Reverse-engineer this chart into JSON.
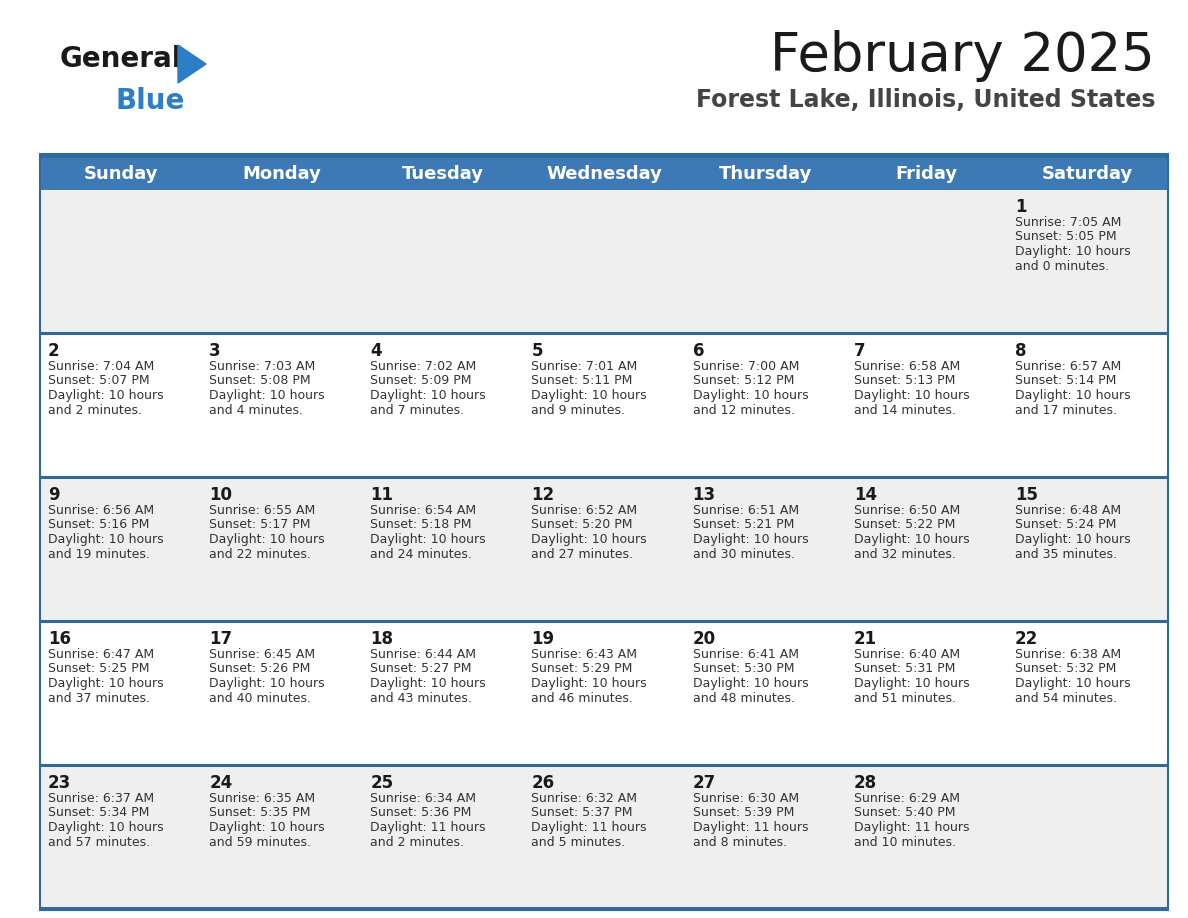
{
  "title": "February 2025",
  "subtitle": "Forest Lake, Illinois, United States",
  "header_bg": "#3d7ab5",
  "header_text": "#ffffff",
  "cell_bg_odd": "#efefef",
  "cell_bg_even": "#ffffff",
  "separator_color": "#2d6aa0",
  "text_color": "#333333",
  "day_number_color": "#1a1a1a",
  "day_headers": [
    "Sunday",
    "Monday",
    "Tuesday",
    "Wednesday",
    "Thursday",
    "Friday",
    "Saturday"
  ],
  "calendar_data": [
    [
      null,
      null,
      null,
      null,
      null,
      null,
      {
        "day": 1,
        "sunrise": "7:05 AM",
        "sunset": "5:05 PM",
        "daylight_hours": 10,
        "daylight_minutes": 0
      }
    ],
    [
      {
        "day": 2,
        "sunrise": "7:04 AM",
        "sunset": "5:07 PM",
        "daylight_hours": 10,
        "daylight_minutes": 2
      },
      {
        "day": 3,
        "sunrise": "7:03 AM",
        "sunset": "5:08 PM",
        "daylight_hours": 10,
        "daylight_minutes": 4
      },
      {
        "day": 4,
        "sunrise": "7:02 AM",
        "sunset": "5:09 PM",
        "daylight_hours": 10,
        "daylight_minutes": 7
      },
      {
        "day": 5,
        "sunrise": "7:01 AM",
        "sunset": "5:11 PM",
        "daylight_hours": 10,
        "daylight_minutes": 9
      },
      {
        "day": 6,
        "sunrise": "7:00 AM",
        "sunset": "5:12 PM",
        "daylight_hours": 10,
        "daylight_minutes": 12
      },
      {
        "day": 7,
        "sunrise": "6:58 AM",
        "sunset": "5:13 PM",
        "daylight_hours": 10,
        "daylight_minutes": 14
      },
      {
        "day": 8,
        "sunrise": "6:57 AM",
        "sunset": "5:14 PM",
        "daylight_hours": 10,
        "daylight_minutes": 17
      }
    ],
    [
      {
        "day": 9,
        "sunrise": "6:56 AM",
        "sunset": "5:16 PM",
        "daylight_hours": 10,
        "daylight_minutes": 19
      },
      {
        "day": 10,
        "sunrise": "6:55 AM",
        "sunset": "5:17 PM",
        "daylight_hours": 10,
        "daylight_minutes": 22
      },
      {
        "day": 11,
        "sunrise": "6:54 AM",
        "sunset": "5:18 PM",
        "daylight_hours": 10,
        "daylight_minutes": 24
      },
      {
        "day": 12,
        "sunrise": "6:52 AM",
        "sunset": "5:20 PM",
        "daylight_hours": 10,
        "daylight_minutes": 27
      },
      {
        "day": 13,
        "sunrise": "6:51 AM",
        "sunset": "5:21 PM",
        "daylight_hours": 10,
        "daylight_minutes": 30
      },
      {
        "day": 14,
        "sunrise": "6:50 AM",
        "sunset": "5:22 PM",
        "daylight_hours": 10,
        "daylight_minutes": 32
      },
      {
        "day": 15,
        "sunrise": "6:48 AM",
        "sunset": "5:24 PM",
        "daylight_hours": 10,
        "daylight_minutes": 35
      }
    ],
    [
      {
        "day": 16,
        "sunrise": "6:47 AM",
        "sunset": "5:25 PM",
        "daylight_hours": 10,
        "daylight_minutes": 37
      },
      {
        "day": 17,
        "sunrise": "6:45 AM",
        "sunset": "5:26 PM",
        "daylight_hours": 10,
        "daylight_minutes": 40
      },
      {
        "day": 18,
        "sunrise": "6:44 AM",
        "sunset": "5:27 PM",
        "daylight_hours": 10,
        "daylight_minutes": 43
      },
      {
        "day": 19,
        "sunrise": "6:43 AM",
        "sunset": "5:29 PM",
        "daylight_hours": 10,
        "daylight_minutes": 46
      },
      {
        "day": 20,
        "sunrise": "6:41 AM",
        "sunset": "5:30 PM",
        "daylight_hours": 10,
        "daylight_minutes": 48
      },
      {
        "day": 21,
        "sunrise": "6:40 AM",
        "sunset": "5:31 PM",
        "daylight_hours": 10,
        "daylight_minutes": 51
      },
      {
        "day": 22,
        "sunrise": "6:38 AM",
        "sunset": "5:32 PM",
        "daylight_hours": 10,
        "daylight_minutes": 54
      }
    ],
    [
      {
        "day": 23,
        "sunrise": "6:37 AM",
        "sunset": "5:34 PM",
        "daylight_hours": 10,
        "daylight_minutes": 57
      },
      {
        "day": 24,
        "sunrise": "6:35 AM",
        "sunset": "5:35 PM",
        "daylight_hours": 10,
        "daylight_minutes": 59
      },
      {
        "day": 25,
        "sunrise": "6:34 AM",
        "sunset": "5:36 PM",
        "daylight_hours": 11,
        "daylight_minutes": 2
      },
      {
        "day": 26,
        "sunrise": "6:32 AM",
        "sunset": "5:37 PM",
        "daylight_hours": 11,
        "daylight_minutes": 5
      },
      {
        "day": 27,
        "sunrise": "6:30 AM",
        "sunset": "5:39 PM",
        "daylight_hours": 11,
        "daylight_minutes": 8
      },
      {
        "day": 28,
        "sunrise": "6:29 AM",
        "sunset": "5:40 PM",
        "daylight_hours": 11,
        "daylight_minutes": 10
      },
      null
    ]
  ],
  "logo_color_general": "#1a1a1a",
  "logo_color_blue": "#2d7ec4",
  "logo_triangle_color": "#2d7ec4",
  "title_fontsize": 38,
  "subtitle_fontsize": 17,
  "header_fontsize": 13,
  "day_num_fontsize": 12,
  "cell_fontsize": 9
}
